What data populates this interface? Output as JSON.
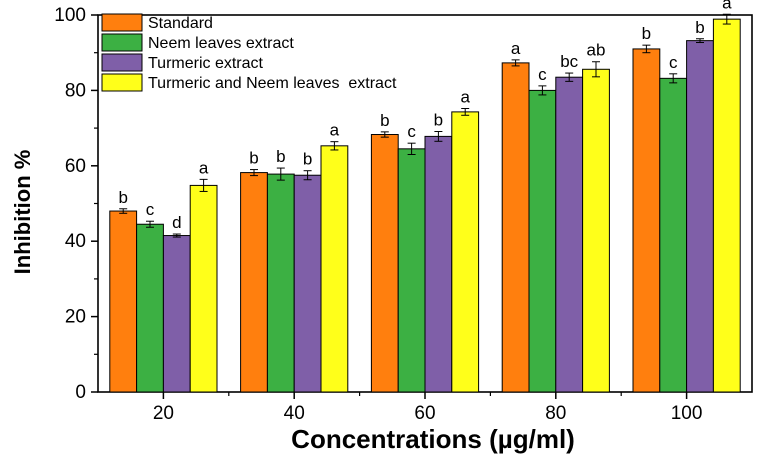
{
  "chart_data": {
    "type": "bar",
    "xlabel": "Concentrations (µg/ml)",
    "ylabel": "Inhibition %",
    "ylim": [
      0,
      100
    ],
    "yticks": [
      0,
      20,
      40,
      60,
      80,
      100
    ],
    "categories": [
      "20",
      "40",
      "60",
      "80",
      "100"
    ],
    "legend_position": "top-left",
    "series": [
      {
        "name": "Standard",
        "color": "#ff7f0e",
        "values": [
          48.0,
          58.2,
          68.3,
          87.3,
          91.0
        ],
        "errors": [
          0.6,
          0.8,
          0.7,
          0.8,
          1.0
        ],
        "letters": [
          "b",
          "b",
          "b",
          "a",
          "b"
        ]
      },
      {
        "name": "Neem leaves extract",
        "color": "#3cb043",
        "values": [
          44.5,
          57.8,
          64.5,
          80.0,
          83.2
        ],
        "errors": [
          0.8,
          1.6,
          1.5,
          1.2,
          1.2
        ],
        "letters": [
          "c",
          "b",
          "c",
          "c",
          "c"
        ]
      },
      {
        "name": "Turmeric extract",
        "color": "#7f5fa8",
        "values": [
          41.5,
          57.5,
          67.8,
          83.5,
          93.2
        ],
        "errors": [
          0.4,
          1.2,
          1.3,
          1.1,
          0.5
        ],
        "letters": [
          "d",
          "b",
          "b",
          "bc",
          "b"
        ]
      },
      {
        "name": "Turmeric and Neem leaves  extract",
        "color": "#ffff1a",
        "values": [
          54.8,
          65.3,
          74.3,
          85.6,
          98.9
        ],
        "errors": [
          1.6,
          1.1,
          0.9,
          2.0,
          1.3
        ],
        "letters": [
          "a",
          "a",
          "a",
          "ab",
          "a"
        ]
      }
    ]
  }
}
